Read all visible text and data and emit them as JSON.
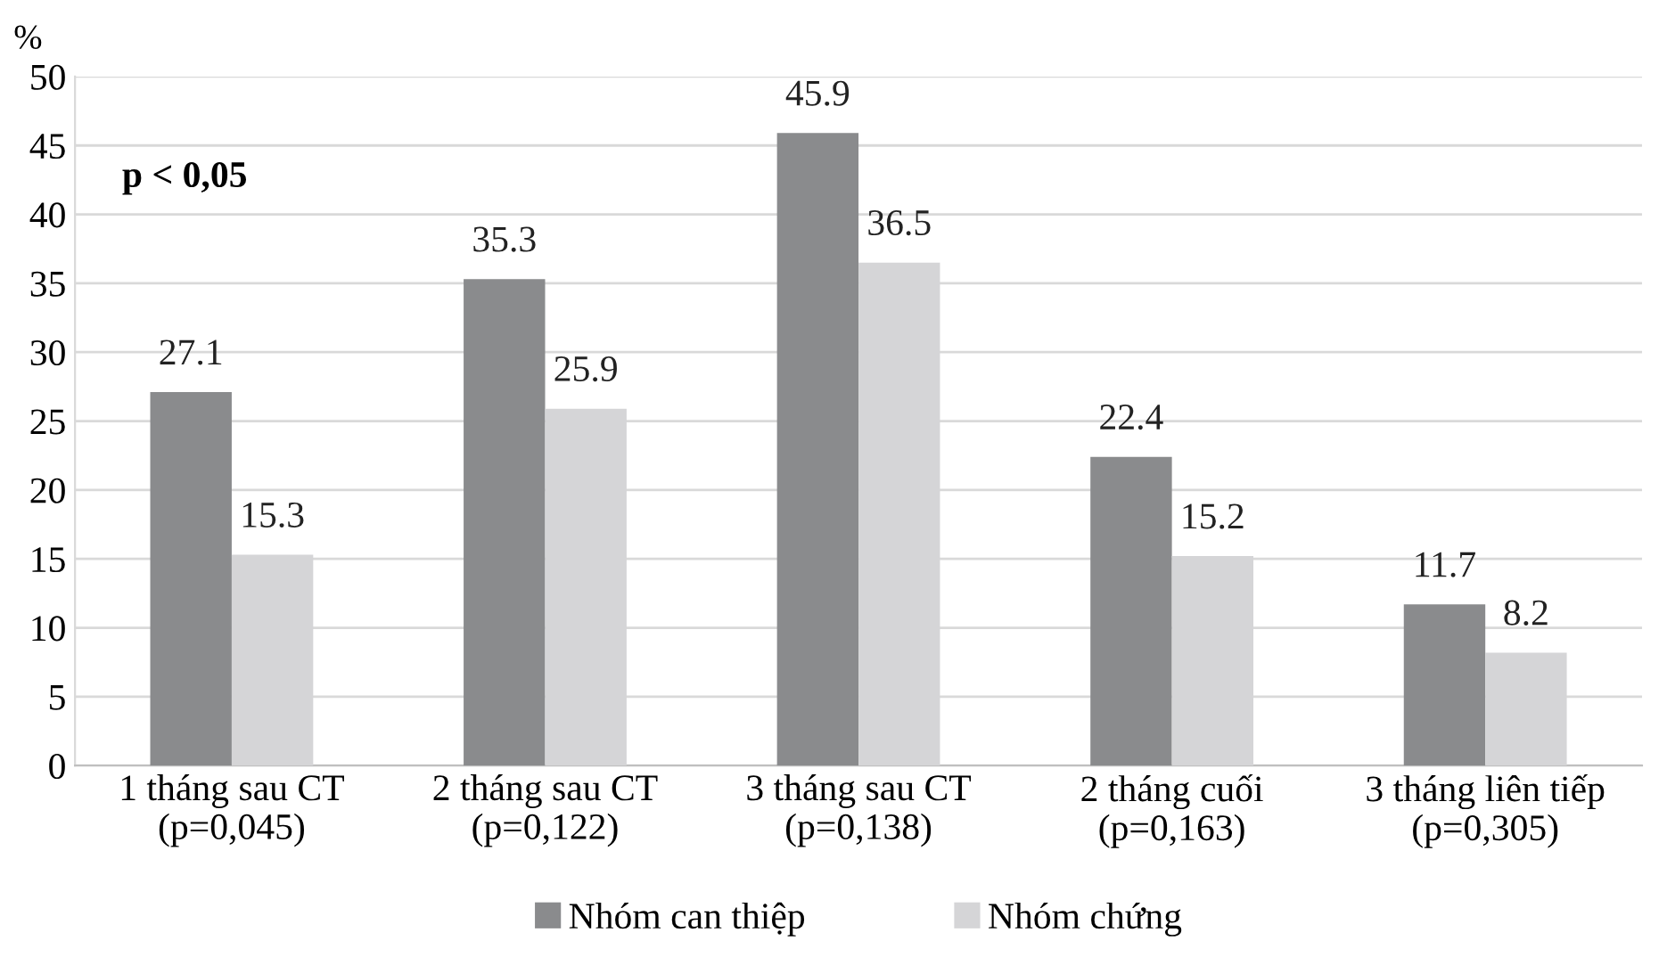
{
  "chart_data": {
    "type": "bar",
    "ylabel": "%",
    "categories": [
      "1 tháng sau CT\n(p=0,045)",
      "2 tháng sau CT\n(p=0,122)",
      "3 tháng sau CT\n(p=0,138)",
      "2 tháng cuối\n(p=0,163)",
      "3 tháng liên tiếp\n(p=0,305)"
    ],
    "series": [
      {
        "name": "Nhóm can thiệp",
        "color": "#8a8b8d",
        "values": [
          27.1,
          35.3,
          45.9,
          22.4,
          11.7
        ]
      },
      {
        "name": "Nhóm chứng",
        "color": "#d5d5d7",
        "values": [
          15.3,
          25.9,
          36.5,
          15.2,
          8.2
        ]
      }
    ],
    "ylim": [
      0,
      50
    ],
    "yticks": [
      0,
      5,
      10,
      15,
      20,
      25,
      30,
      35,
      40,
      45,
      50
    ],
    "grid": "y",
    "legend": "bottom",
    "data_labels": true,
    "annotations": [
      "p < 0,05"
    ]
  }
}
